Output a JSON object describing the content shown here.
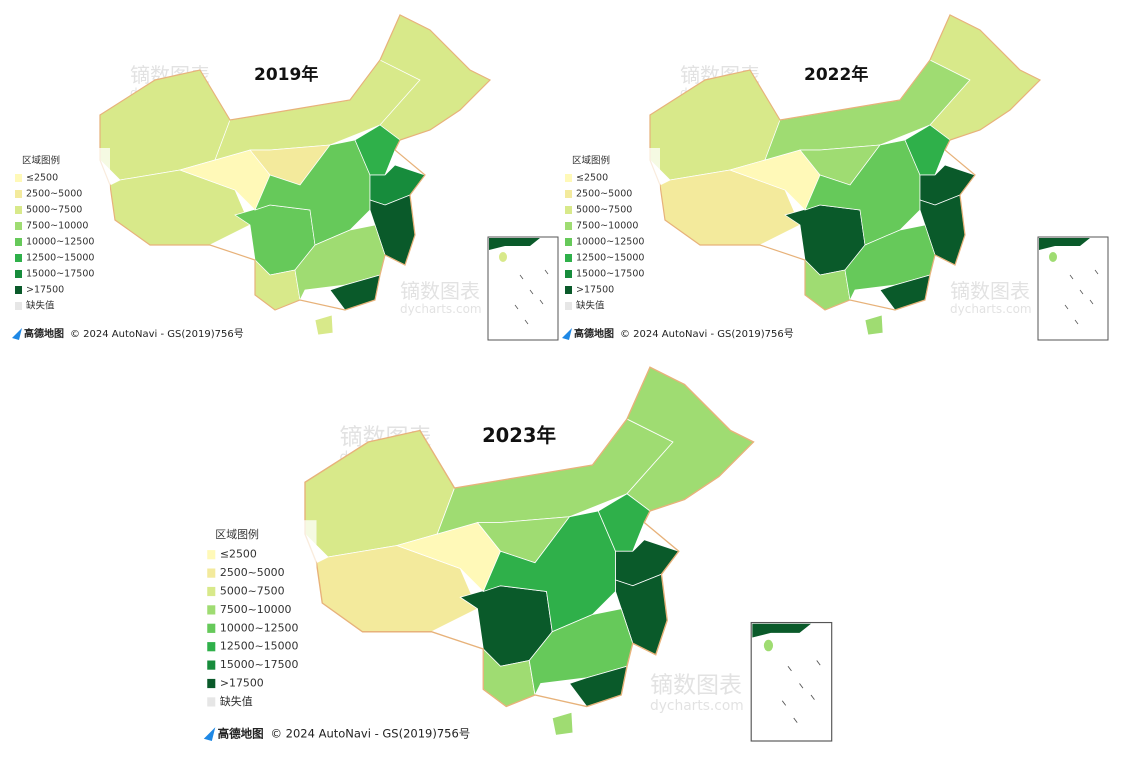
{
  "maps": [
    {
      "title": "2019年"
    },
    {
      "title": "2022年"
    },
    {
      "title": "2023年"
    }
  ],
  "legend": {
    "title": "区域图例",
    "items": [
      "≤2500",
      "2500~5000",
      "5000~7500",
      "7500~10000",
      "10000~12500",
      "12500~15000",
      "15000~17500",
      ">17500"
    ],
    "missing": "缺失值"
  },
  "attribution": {
    "logo": "高德地图",
    "text": "© 2024 AutoNavi - GS(2019)756号"
  },
  "watermark": {
    "name": "镝数图表",
    "site": "dycharts.com"
  }
}
